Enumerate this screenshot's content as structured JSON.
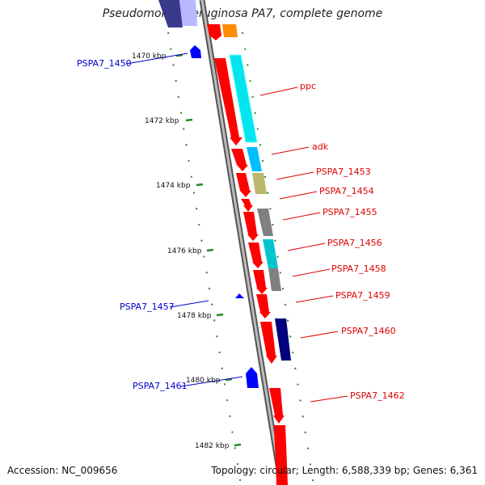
{
  "map": {
    "title": "Pseudomonas aeruginosa PA7, complete genome",
    "accession": "Accession: NC_009656",
    "topology": "Topology: circular; Length: 6,588,339 bp; Genes: 6,361"
  },
  "kbp_ticks": [
    {
      "label": "1470 kbp"
    },
    {
      "label": "1472 kbp"
    },
    {
      "label": "1474 kbp"
    },
    {
      "label": "1476 kbp"
    },
    {
      "label": "1478 kbp"
    },
    {
      "label": "1480 kbp"
    },
    {
      "label": "1482 kbp"
    }
  ],
  "forward_genes": [
    {
      "label": "ppc"
    },
    {
      "label": "adk"
    },
    {
      "label": "PSPA7_1453"
    },
    {
      "label": "PSPA7_1454"
    },
    {
      "label": "PSPA7_1455"
    },
    {
      "label": "PSPA7_1456"
    },
    {
      "label": "PSPA7_1458"
    },
    {
      "label": "PSPA7_1459"
    },
    {
      "label": "PSPA7_1460"
    },
    {
      "label": "PSPA7_1462"
    }
  ],
  "reverse_genes": [
    {
      "label": "PSPA7_1450"
    },
    {
      "label": "PSPA7_1457"
    },
    {
      "label": "PSPA7_1461"
    }
  ],
  "colors": {
    "cds": "#ff0000",
    "reverse_cds": "#0000ff",
    "cyan_track": "#00e5ee",
    "gray_track": "#808080",
    "khaki_track": "#bdb76b",
    "navy_track": "#000080",
    "sky_track": "#1e90ff",
    "orange_track": "#ff8c00",
    "backbone": "#888888",
    "dots": "#228b22"
  }
}
